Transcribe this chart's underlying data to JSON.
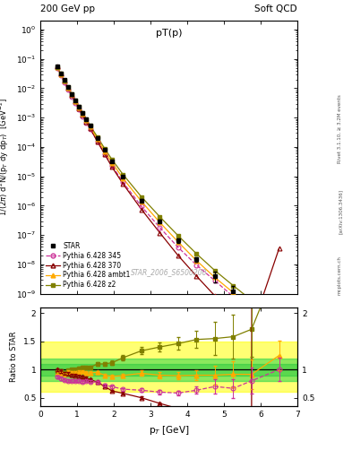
{
  "title_left": "200 GeV pp",
  "title_right": "Soft QCD",
  "plot_title": "pT(p)",
  "ylabel_main": "1/(2π) d²N/(p_T dy dp_T)  [GeV⁻²]",
  "ylabel_ratio": "Ratio to STAR",
  "xlabel": "p_T [GeV]",
  "watermark": "STAR_2006_S6500200",
  "right_label": "Rivet 3.1.10, ≥ 3.2M events",
  "arxiv": "[arXiv:1306.3436]",
  "mcplots": "mcplots.cern.ch",
  "star_pt": [
    0.45,
    0.55,
    0.65,
    0.75,
    0.85,
    0.95,
    1.05,
    1.15,
    1.25,
    1.35,
    1.55,
    1.75,
    1.95,
    2.25,
    2.75,
    3.25,
    3.75,
    4.25,
    4.75,
    5.25,
    5.75,
    6.5
  ],
  "star_val": [
    0.055,
    0.032,
    0.019,
    0.011,
    0.0065,
    0.0039,
    0.0023,
    0.0014,
    0.00085,
    0.00052,
    0.0002,
    8e-05,
    3.3e-05,
    9.5e-06,
    1.5e-06,
    3e-07,
    6.5e-08,
    1.5e-08,
    4e-09,
    1.2e-09,
    3.5e-10,
    1.2e-10
  ],
  "star_err": [
    0.003,
    0.0018,
    0.001,
    0.0006,
    0.00035,
    0.0002,
    0.00012,
    8e-05,
    5e-05,
    3e-05,
    1.2e-05,
    5e-06,
    2.2e-06,
    7e-07,
    1.5e-07,
    3.5e-08,
    1e-08,
    3e-09,
    1.5e-09,
    6e-10,
    2e-10,
    5e-11
  ],
  "py345_pt": [
    0.45,
    0.55,
    0.65,
    0.75,
    0.85,
    0.95,
    1.05,
    1.15,
    1.25,
    1.35,
    1.55,
    1.75,
    1.95,
    2.25,
    2.75,
    3.25,
    3.75,
    4.25,
    4.75,
    5.25,
    5.75,
    6.5
  ],
  "py345_val": [
    0.048,
    0.027,
    0.0155,
    0.0088,
    0.0052,
    0.0031,
    0.00185,
    0.0011,
    0.00068,
    0.00041,
    0.000155,
    5.8e-05,
    2.3e-05,
    6.2e-06,
    9.5e-07,
    1.8e-07,
    3.8e-08,
    9.5e-09,
    2.8e-09,
    8e-10,
    2.8e-10,
    1.2e-10
  ],
  "py370_pt": [
    0.45,
    0.55,
    0.65,
    0.75,
    0.85,
    0.95,
    1.05,
    1.15,
    1.25,
    1.35,
    1.55,
    1.75,
    1.95,
    2.25,
    2.75,
    3.25,
    3.75,
    4.25,
    4.75,
    5.25,
    5.75,
    6.5
  ],
  "py370_val": [
    0.055,
    0.031,
    0.0178,
    0.0102,
    0.0059,
    0.0035,
    0.00205,
    0.00122,
    0.00072,
    0.00043,
    0.000155,
    5.6e-05,
    2.05e-05,
    5.5e-06,
    7.5e-07,
    1.2e-07,
    2e-08,
    4e-09,
    8.5e-10,
    2e-10,
    6e-11,
    3.5e-08
  ],
  "pyambt_pt": [
    0.45,
    0.55,
    0.65,
    0.75,
    0.85,
    0.95,
    1.05,
    1.15,
    1.25,
    1.35,
    1.55,
    1.75,
    1.95,
    2.25,
    2.75,
    3.25,
    3.75,
    4.25,
    4.75,
    5.25,
    5.75,
    6.5
  ],
  "pyambt_val": [
    0.052,
    0.03,
    0.0175,
    0.0105,
    0.0062,
    0.0037,
    0.0022,
    0.00135,
    0.0008,
    0.00049,
    0.00019,
    7.2e-05,
    2.9e-05,
    8.5e-06,
    1.4e-06,
    2.7e-07,
    5.8e-08,
    1.35e-08,
    3.6e-09,
    1.1e-09,
    3.2e-10,
    1.5e-10
  ],
  "pyz2_pt": [
    0.45,
    0.55,
    0.65,
    0.75,
    0.85,
    0.95,
    1.05,
    1.15,
    1.25,
    1.35,
    1.55,
    1.75,
    1.95,
    2.25,
    2.75,
    3.25,
    3.75,
    4.25,
    4.75,
    5.25,
    5.75,
    6.5
  ],
  "pyz2_val": [
    0.053,
    0.031,
    0.018,
    0.0108,
    0.0065,
    0.0039,
    0.00235,
    0.00145,
    0.00088,
    0.00054,
    0.00022,
    8.8e-05,
    3.7e-05,
    1.15e-05,
    2e-06,
    4.2e-07,
    9.5e-08,
    2.3e-08,
    6.2e-09,
    1.9e-09,
    6e-10,
    3.5e-10
  ],
  "color_star": "#000000",
  "color_345": "#cc3399",
  "color_370": "#880000",
  "color_ambt": "#ffaa00",
  "color_z2": "#808000",
  "band_green_inner": [
    0.9,
    1.1
  ],
  "band_green_outer": [
    0.8,
    1.2
  ],
  "band_yellow_outer": [
    0.6,
    1.5
  ],
  "ylim_main": [
    1e-09,
    2.0
  ],
  "ylim_ratio": [
    0.35,
    2.1
  ],
  "xlim": [
    0.0,
    7.0
  ]
}
